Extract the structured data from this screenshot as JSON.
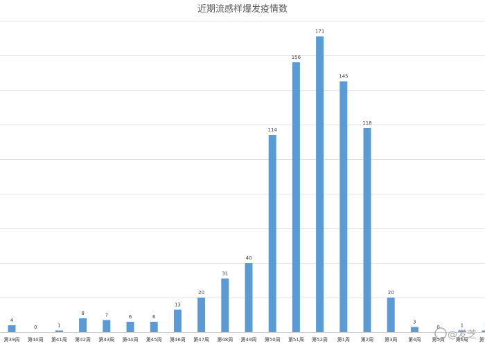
{
  "chart_data": {
    "type": "bar",
    "title": "近期流感样爆发疫情数",
    "categories": [
      "第39周",
      "第40周",
      "第41周",
      "第42周",
      "第43周",
      "第44周",
      "第45周",
      "第46周",
      "第47周",
      "第48周",
      "第49周",
      "第50周",
      "第51周",
      "第52周",
      "第1周",
      "第2周",
      "第3周",
      "第4周",
      "第5周",
      "第6周",
      "第7周"
    ],
    "values": [
      4,
      0,
      1,
      8,
      7,
      6,
      6,
      13,
      20,
      31,
      40,
      114,
      156,
      171,
      145,
      118,
      20,
      3,
      0,
      1,
      1
    ],
    "ylim": [
      0,
      180
    ],
    "grid": true,
    "legend": "none",
    "bar_color": "#5b9bd5"
  },
  "watermark": {
    "text": "@发芝"
  }
}
